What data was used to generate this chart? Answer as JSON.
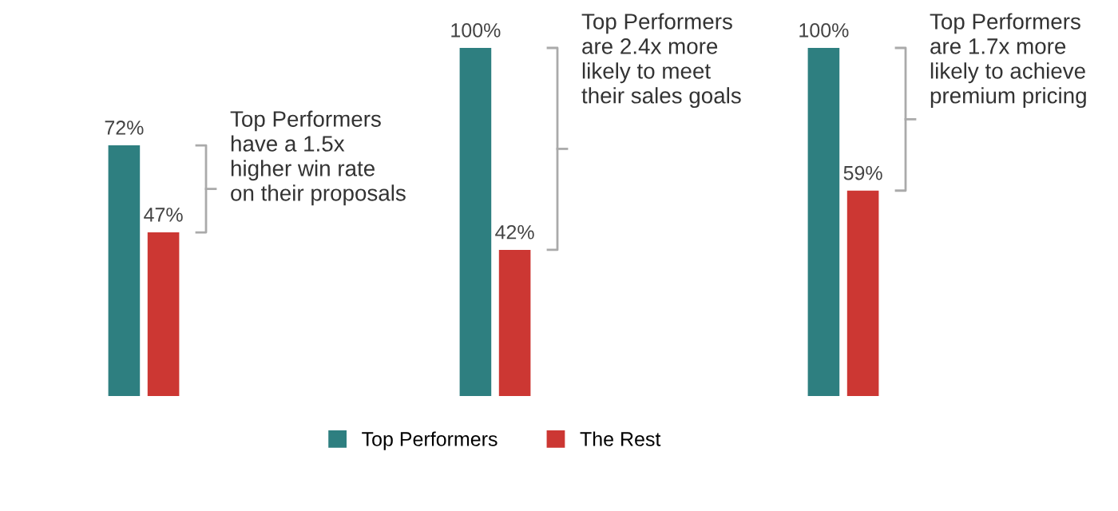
{
  "chart_data": [
    {
      "type": "bar",
      "categories": [
        null
      ],
      "series": [
        {
          "color": "#2e7f80",
          "values": [
            72
          ],
          "value_labels": [
            "72%"
          ]
        },
        {
          "color": "#cc3733",
          "values": [
            47
          ],
          "value_labels": [
            "47%"
          ]
        }
      ],
      "annotations": [
        "Top Performers\nhave a 1.5x\nhigher win rate\non their proposals"
      ]
    },
    {
      "type": "bar",
      "categories": [
        null
      ],
      "series": [
        {
          "name": "Top Performers",
          "color": "#2e7f80",
          "values": [
            100
          ],
          "value_labels": [
            "100%"
          ]
        },
        {
          "name": "The Rest",
          "color": "#cc3733",
          "values": [
            42
          ],
          "value_labels": [
            "42%"
          ]
        }
      ],
      "annotations": [
        "Top Performers\nare 2.4x more\nlikely to meet\ntheir sales goals"
      ],
      "legend": "bottom"
    },
    {
      "type": "bar",
      "categories": [
        null
      ],
      "series": [
        {
          "color": "#2e7f80",
          "values": [
            100
          ],
          "value_labels": [
            "100%"
          ]
        },
        {
          "color": "#cc3733",
          "values": [
            59
          ],
          "value_labels": [
            "59%"
          ]
        }
      ],
      "annotations": [
        "Top Performers\nare 1.7x more\nlikely to achieve\npremium pricing"
      ]
    }
  ]
}
